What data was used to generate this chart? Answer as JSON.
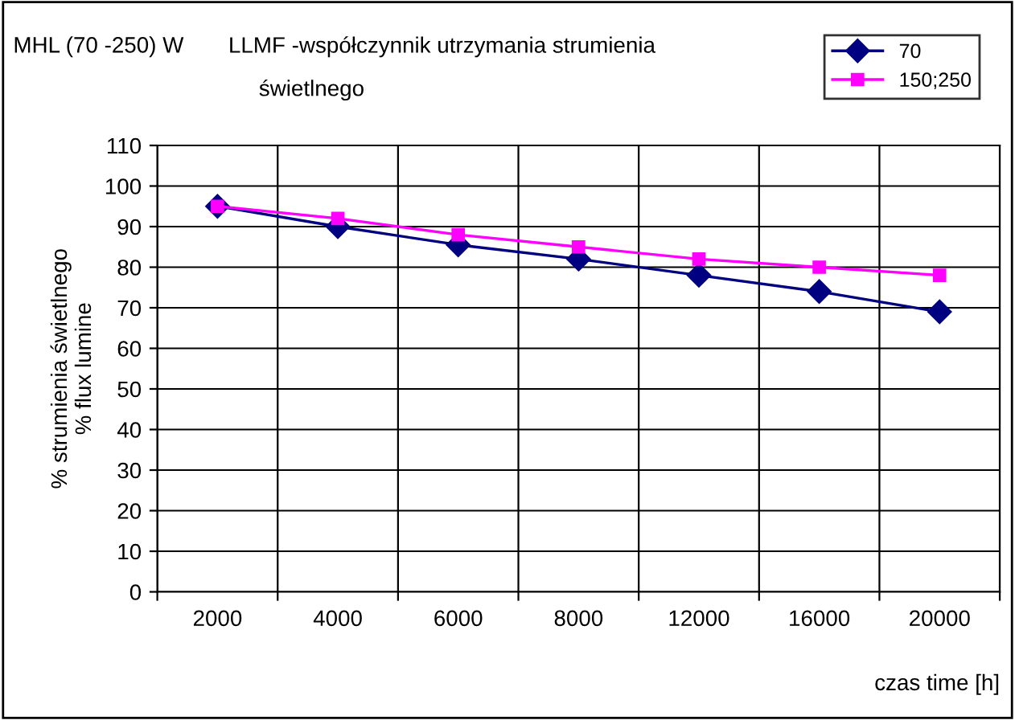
{
  "chart_data": {
    "type": "line",
    "title": "MHL (70 -250) W",
    "subtitle": "LLMF -współczynnik utrzymania strumienia\nświetlnego",
    "categories": [
      "2000",
      "4000",
      "6000",
      "8000",
      "12000",
      "16000",
      "20000"
    ],
    "series": [
      {
        "name": "70",
        "color": "#000080",
        "marker": "diamond",
        "values": [
          95,
          90,
          85.5,
          82,
          78,
          74,
          69
        ]
      },
      {
        "name": "150;250",
        "color": "#ff00ff",
        "marker": "square",
        "values": [
          95,
          92,
          88,
          85,
          82,
          80,
          78
        ]
      }
    ],
    "ylim": [
      0,
      110
    ],
    "yticks": [
      0,
      10,
      20,
      30,
      40,
      50,
      60,
      70,
      80,
      90,
      100,
      110
    ],
    "xlabel": "czas time [h]",
    "ylabel": "% strumienia świetlnego\n% flux lumine",
    "grid": true,
    "legend": "top right",
    "line_style": "solid"
  }
}
